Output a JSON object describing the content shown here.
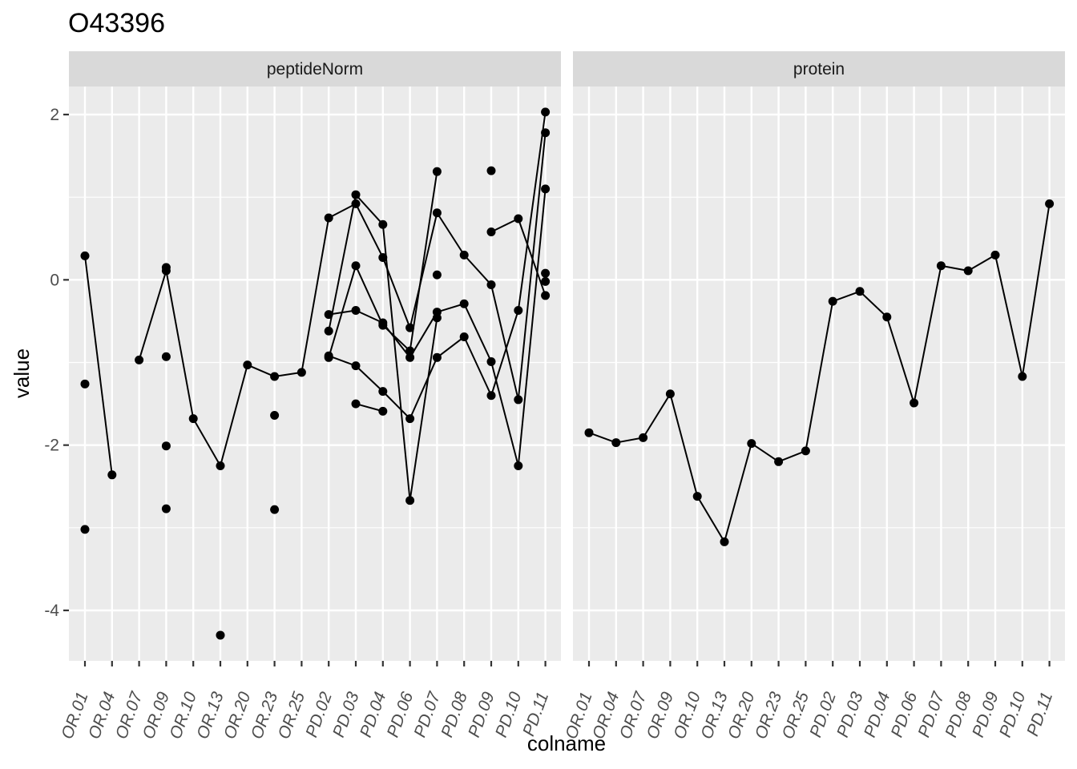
{
  "chart_data": {
    "type": "line",
    "title": "O43396",
    "xlabel": "colname",
    "ylabel": "value",
    "ylim": [
      -4.6,
      2.3
    ],
    "yticks": [
      2,
      0,
      -2,
      -4
    ],
    "ytick_labels": [
      "2",
      "0",
      "-2",
      "-4"
    ],
    "grid": true,
    "categories": [
      "OR.01",
      "OR.04",
      "OR.07",
      "OR.09",
      "OR.10",
      "OR.13",
      "OR.20",
      "OR.23",
      "OR.25",
      "PD.02",
      "PD.03",
      "PD.04",
      "PD.06",
      "PD.07",
      "PD.08",
      "PD.09",
      "PD.10",
      "PD.11"
    ],
    "panels": [
      {
        "name": "peptideNorm",
        "series": [
          {
            "values": [
              null,
              null,
              -0.97,
              0.11,
              -1.68,
              -2.25,
              -1.03,
              -1.17,
              -1.12,
              0.75,
              0.92,
              0.27,
              -0.58,
              0.81,
              0.3,
              -0.06,
              -1.45,
              1.78
            ]
          },
          {
            "values": [
              null,
              null,
              null,
              0.15,
              null,
              null,
              null,
              null,
              null,
              -0.42,
              -0.37,
              -0.52,
              -0.94,
              -0.39,
              -0.29,
              -0.99,
              -2.25,
              1.1
            ]
          },
          {
            "values": [
              null,
              null,
              null,
              null,
              null,
              null,
              null,
              null,
              null,
              -0.92,
              -1.04,
              -1.35,
              -1.68,
              -0.94,
              -0.69,
              -1.4,
              -0.37,
              2.03
            ]
          },
          {
            "values": [
              null,
              null,
              null,
              null,
              null,
              null,
              null,
              null,
              null,
              -0.62,
              1.03,
              0.67,
              -2.67,
              -0.46,
              null,
              0.58,
              0.74,
              -0.19
            ]
          },
          {
            "values": [
              null,
              null,
              null,
              null,
              null,
              null,
              null,
              null,
              null,
              -0.94,
              0.17,
              -0.55,
              -0.86,
              1.31,
              null,
              1.32,
              null,
              -0.02
            ]
          },
          {
            "values": [
              null,
              null,
              null,
              null,
              null,
              null,
              null,
              null,
              null,
              null,
              -1.5,
              -1.59,
              null,
              0.06,
              null,
              null,
              null,
              0.08
            ]
          },
          {
            "values": [
              0.29,
              -2.36,
              null,
              -0.93,
              null,
              -4.3,
              null,
              -1.64,
              null,
              null,
              null,
              null,
              null,
              null,
              null,
              null,
              null,
              null
            ]
          },
          {
            "values": [
              -1.26,
              null,
              null,
              -2.01,
              null,
              null,
              null,
              -2.78,
              null,
              null,
              null,
              null,
              null,
              null,
              null,
              null,
              null,
              null
            ]
          },
          {
            "values": [
              -3.02,
              null,
              null,
              -2.77,
              null,
              null,
              null,
              null,
              null,
              null,
              null,
              null,
              null,
              null,
              null,
              null,
              null,
              null
            ]
          }
        ]
      },
      {
        "name": "protein",
        "series": [
          {
            "values": [
              -1.85,
              -1.97,
              -1.91,
              -1.38,
              -2.62,
              -3.17,
              -1.98,
              -2.2,
              -2.07,
              -0.26,
              -0.14,
              -0.45,
              -1.49,
              0.17,
              0.11,
              0.3,
              -1.17,
              0.92
            ]
          }
        ]
      }
    ]
  }
}
